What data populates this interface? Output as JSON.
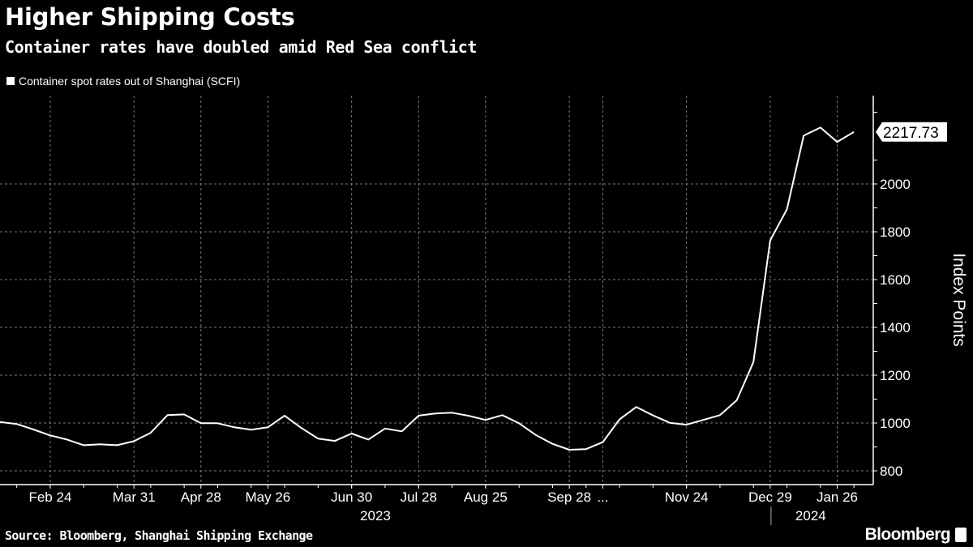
{
  "header": {
    "title": "Higher Shipping Costs",
    "subtitle": "Container rates have doubled amid Red Sea conflict"
  },
  "footer": {
    "source": "Source: Bloomberg, Shanghai Shipping Exchange",
    "logo": "Bloomberg"
  },
  "colors": {
    "background": "#000000",
    "line": "#ffffff",
    "grid": "#7a7a7a"
  },
  "chart_data": {
    "type": "line",
    "title": "Higher Shipping Costs",
    "subtitle": "Container rates have doubled amid Red Sea conflict",
    "ylabel": "Index Points",
    "xlabel": "",
    "ylim": [
      740,
      2370
    ],
    "yticks": [
      800,
      1000,
      1200,
      1400,
      1600,
      1800,
      2000
    ],
    "y_axis_side": "right",
    "grid": true,
    "legend_position": "top-left",
    "last_value_label": "2217.73",
    "x_tick_labels": [
      {
        "index": 3,
        "label": "Feb 24"
      },
      {
        "index": 8,
        "label": "Mar 31"
      },
      {
        "index": 12,
        "label": "Apr 28"
      },
      {
        "index": 16,
        "label": "May 26"
      },
      {
        "index": 21,
        "label": "Jun 30"
      },
      {
        "index": 25,
        "label": "Jul 28"
      },
      {
        "index": 29,
        "label": "Aug 25"
      },
      {
        "index": 34,
        "label": "Sep 28"
      },
      {
        "index": 36,
        "label": "..."
      },
      {
        "index": 41,
        "label": "Nov 24"
      },
      {
        "index": 46,
        "label": "Dec 29"
      },
      {
        "index": 50,
        "label": "Jan 26"
      }
    ],
    "year_labels": [
      {
        "index": 23,
        "label": "2023"
      },
      {
        "index": 49,
        "label": "2024"
      }
    ],
    "series": [
      {
        "name": "Container spot rates out of Shanghai (SCFI)",
        "values": [
          1004,
          996,
          973,
          948,
          931,
          907,
          911,
          907,
          924,
          959,
          1033,
          1036,
          999,
          999,
          982,
          972,
          982,
          1031,
          979,
          935,
          925,
          956,
          931,
          977,
          965,
          1031,
          1040,
          1043,
          1030,
          1013,
          1033,
          999,
          950,
          913,
          888,
          891,
          920,
          1015,
          1067,
          1032,
          1001,
          993,
          1013,
          1033,
          1095,
          1255,
          1764,
          1894,
          2202,
          2236,
          2176,
          2217.73
        ]
      }
    ]
  }
}
